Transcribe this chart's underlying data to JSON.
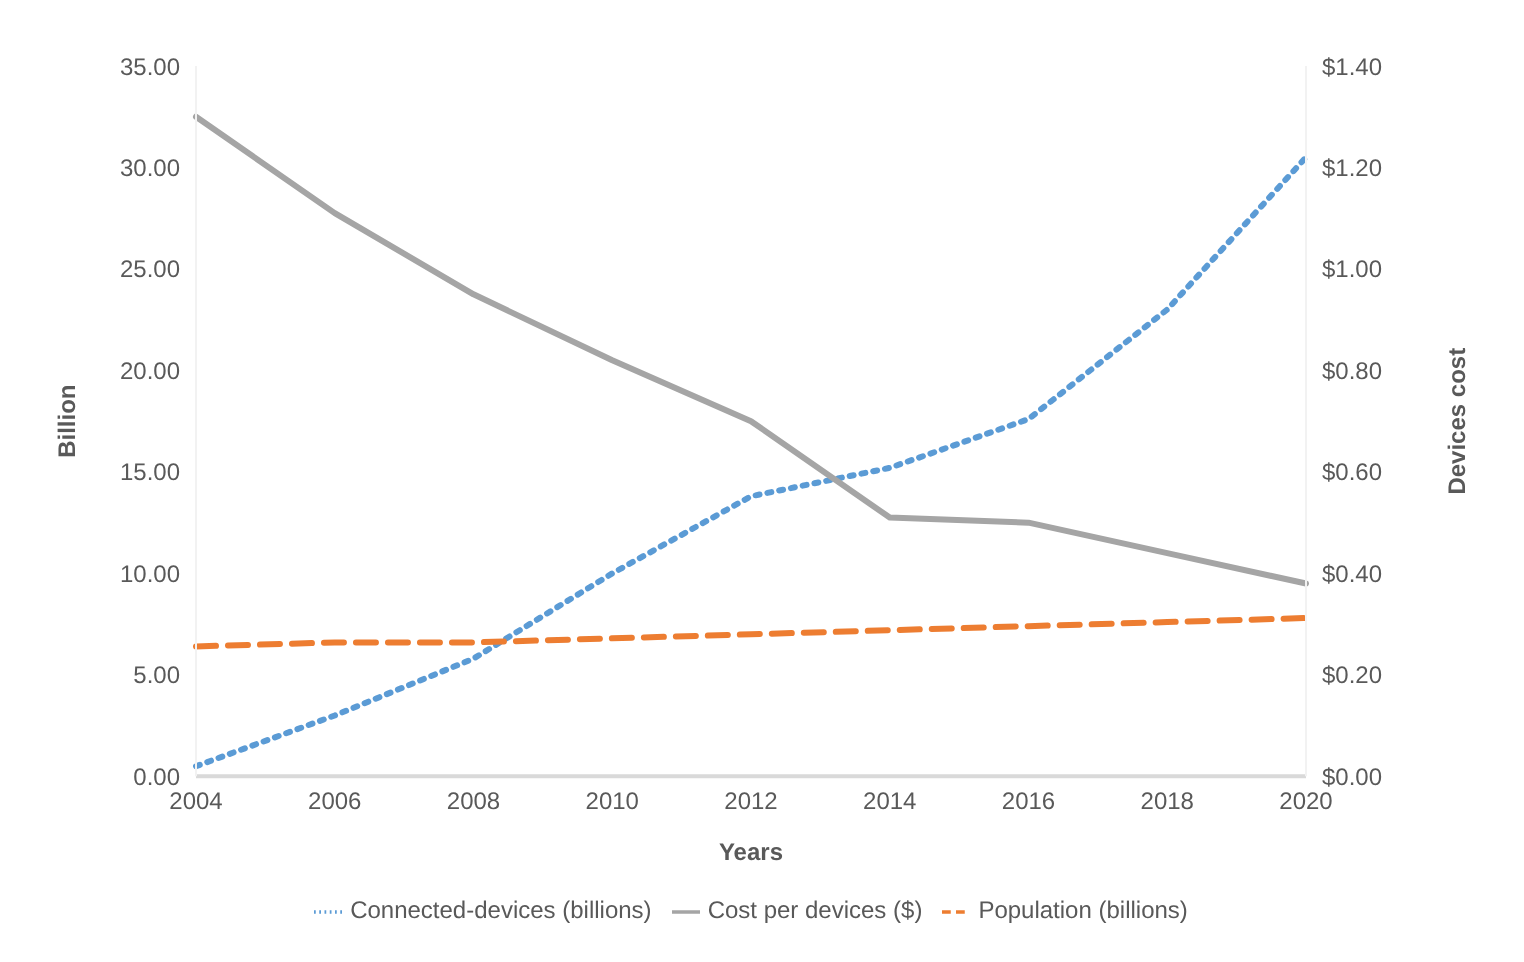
{
  "chart_data": {
    "type": "line",
    "xlabel": "Years",
    "ylabel": "Billion",
    "y2label": "Devices cost",
    "categories": [
      "2004",
      "2006",
      "2008",
      "2010",
      "2012",
      "2014",
      "2016",
      "2018",
      "2020"
    ],
    "series": [
      {
        "name": "Connected-devices (billions)",
        "color": "#5b9bd5",
        "line_style": "dotted",
        "values": [
          0.5,
          3.0,
          5.8,
          10.0,
          13.8,
          15.2,
          17.6,
          23.0,
          30.5
        ]
      },
      {
        "name": "Population (billions)",
        "color": "#ed7d31",
        "line_style": "dashed",
        "values": [
          6.4,
          6.6,
          6.6,
          6.8,
          7.0,
          7.2,
          7.4,
          7.6,
          7.8
        ]
      },
      {
        "name": "Cost per devices ($)",
        "color": "#a5a5a5",
        "line_style": "solid",
        "axis": "y2",
        "values": [
          1.3,
          1.11,
          0.95,
          0.82,
          0.7,
          0.51,
          0.5,
          0.44,
          0.38
        ]
      }
    ],
    "ylim": [
      0,
      35
    ],
    "yticks": [
      {
        "value": 0,
        "label": "0.00"
      },
      {
        "value": 5,
        "label": "5.00"
      },
      {
        "value": 10,
        "label": "10.00"
      },
      {
        "value": 15,
        "label": "15.00"
      },
      {
        "value": 20,
        "label": "20.00"
      },
      {
        "value": 25,
        "label": "25.00"
      },
      {
        "value": 30,
        "label": "30.00"
      },
      {
        "value": 35,
        "label": "35.00"
      }
    ],
    "y2lim": [
      0,
      1.4
    ],
    "y2ticks": [
      {
        "value": 0,
        "label": "$0.00"
      },
      {
        "value": 0.2,
        "label": "$0.20"
      },
      {
        "value": 0.4,
        "label": "$0.40"
      },
      {
        "value": 0.6,
        "label": "$0.60"
      },
      {
        "value": 0.8,
        "label": "$0.80"
      },
      {
        "value": 1.0,
        "label": "$1.00"
      },
      {
        "value": 1.2,
        "label": "$1.20"
      },
      {
        "value": 1.4,
        "label": "$1.40"
      }
    ],
    "grid": false,
    "legend": "bottom",
    "marker": "none"
  }
}
